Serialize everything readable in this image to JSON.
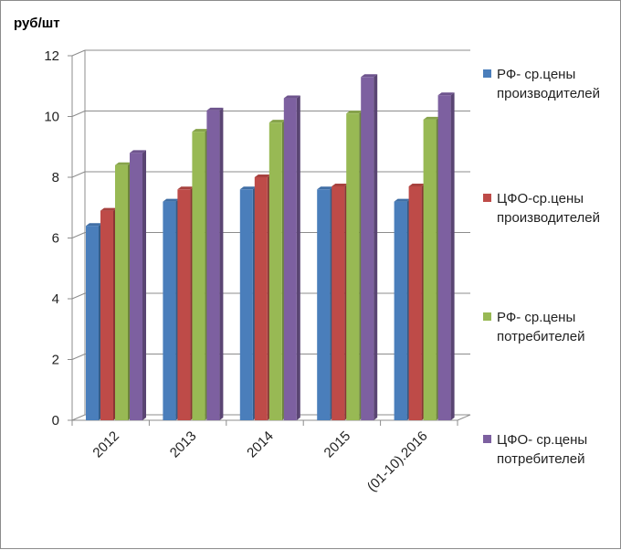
{
  "chart_data": {
    "type": "bar",
    "ylabel": "руб/шт",
    "categories": [
      "2012",
      "2013",
      "2014",
      "2015",
      "(01-10).2016"
    ],
    "ylim": [
      0,
      12
    ],
    "yticks": [
      0,
      2,
      4,
      6,
      8,
      10,
      12
    ],
    "grid": true,
    "legend_position": "right",
    "series": [
      {
        "name": "РФ- ср.цены производителей",
        "color": "#4a7ebb",
        "values": [
          6.4,
          7.2,
          7.6,
          7.6,
          7.2
        ]
      },
      {
        "name": "ЦФО-ср.цены производителей",
        "color": "#be4b48",
        "values": [
          6.9,
          7.6,
          8.0,
          7.7,
          7.7
        ]
      },
      {
        "name": "РФ- ср.цены потребителей",
        "color": "#98b954",
        "values": [
          8.4,
          9.5,
          9.8,
          10.1,
          9.9
        ]
      },
      {
        "name": "ЦФО- ср.цены потребителей",
        "color": "#7d60a0",
        "values": [
          8.8,
          10.2,
          10.6,
          11.3,
          10.7
        ]
      }
    ]
  },
  "legend": {
    "items": [
      {
        "line1": "РФ- ср.цены",
        "line2": "производителей"
      },
      {
        "line1": "ЦФО-ср.цены",
        "line2": "производителей"
      },
      {
        "line1": "РФ- ср.цены",
        "line2": "потребителей"
      },
      {
        "line1": "ЦФО- ср.цены",
        "line2": "потребителей"
      }
    ]
  }
}
